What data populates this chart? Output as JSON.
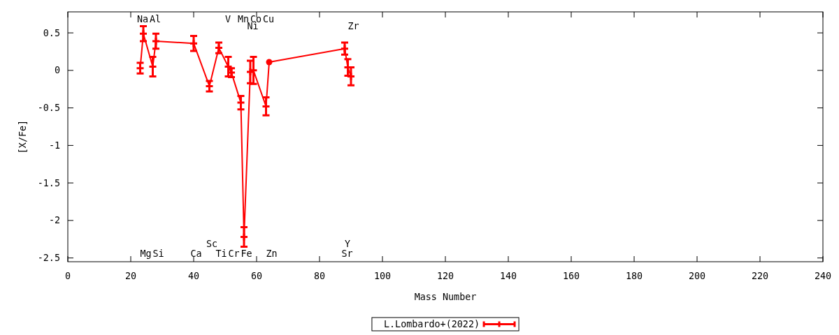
{
  "chart_data": {
    "type": "line",
    "xlabel": "Mass Number",
    "ylabel": "[X/Fe]",
    "xlim": [
      0,
      240
    ],
    "xticks": [
      0,
      20,
      40,
      60,
      80,
      100,
      120,
      140,
      160,
      180,
      200,
      220,
      240
    ],
    "ylim": [
      -2.55,
      0.78
    ],
    "yticks": [
      -2.5,
      -2,
      -1.5,
      -1,
      -0.5,
      0,
      0.5
    ],
    "legend": "bottom",
    "series": [
      {
        "name": "L.Lombardo+(2022)",
        "color": "#ff0000",
        "marker": "cross",
        "x": [
          23,
          24,
          27,
          28,
          40,
          45,
          48,
          51,
          52,
          55,
          56,
          58,
          59,
          63,
          64,
          88,
          89,
          90
        ],
        "values": [
          0.03,
          0.49,
          0.05,
          0.39,
          0.36,
          -0.21,
          0.3,
          0.05,
          -0.03,
          -0.43,
          -2.22,
          -0.02,
          0.0,
          -0.48,
          0.11,
          0.29,
          0.04,
          -0.08
        ],
        "errors": [
          0.07,
          0.1,
          0.13,
          0.1,
          0.1,
          0.07,
          0.07,
          0.13,
          0.06,
          0.09,
          0.13,
          0.15,
          0.18,
          0.12,
          null,
          0.08,
          0.11,
          0.12
        ]
      },
      {
        "type": "scatter",
        "color": "#ff0000",
        "marker": "circle",
        "x": [
          64
        ],
        "values": [
          0.11
        ]
      }
    ],
    "annotations": [
      "Na",
      "Mg",
      "Al",
      "Si",
      "Ca",
      "Sc",
      "Ti",
      "V",
      "Cr",
      "Mn",
      "Fe",
      "Ni",
      "Co",
      "Cu",
      "Zn",
      "Sr",
      "Y",
      "Zr"
    ]
  }
}
